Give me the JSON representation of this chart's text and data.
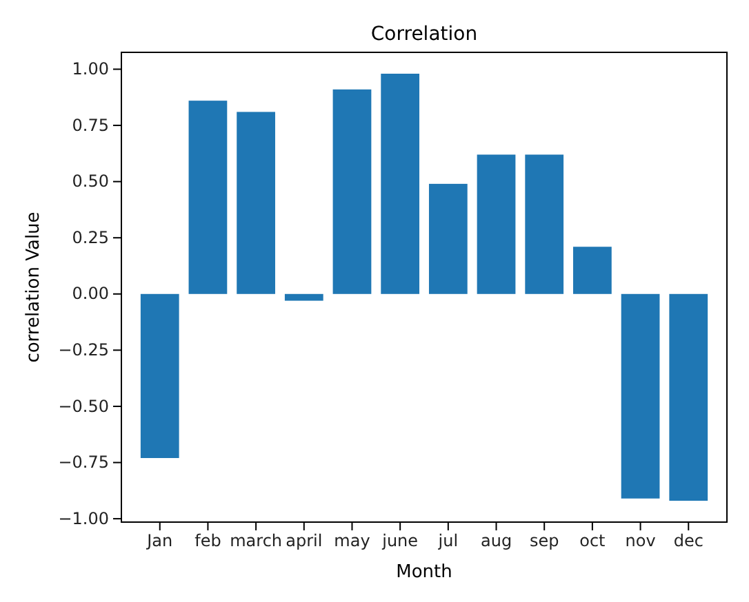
{
  "chart_data": {
    "type": "bar",
    "title": "Correlation",
    "xlabel": "Month",
    "ylabel": "correlation Value",
    "categories": [
      "Jan",
      "feb",
      "march",
      "april",
      "may",
      "june",
      "jul",
      "aug",
      "sep",
      "oct",
      "nov",
      "dec"
    ],
    "values": [
      -0.73,
      0.86,
      0.81,
      -0.03,
      0.91,
      0.98,
      0.49,
      0.62,
      0.62,
      0.21,
      -0.91,
      -0.92
    ],
    "color": "#1f77b4",
    "ylim": [
      -1.015,
      1.075
    ],
    "yticks": [
      {
        "value": -1,
        "label": "−1.00"
      },
      {
        "value": -0.75,
        "label": "−0.75"
      },
      {
        "value": -0.5,
        "label": "−0.50"
      },
      {
        "value": -0.25,
        "label": "−0.25"
      },
      {
        "value": 0,
        "label": "0.00"
      },
      {
        "value": 0.25,
        "label": "0.25"
      },
      {
        "value": 0.5,
        "label": "0.50"
      },
      {
        "value": 0.75,
        "label": "0.75"
      },
      {
        "value": 1,
        "label": "1.00"
      }
    ],
    "grid": false
  }
}
